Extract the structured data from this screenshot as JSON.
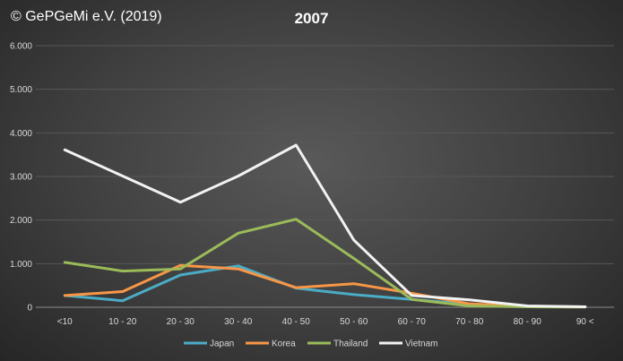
{
  "copyright": "© GePGeMi e.V. (2019)",
  "chart_data": {
    "type": "line",
    "title": "2007",
    "categories": [
      "<10",
      "10 - 20",
      "20 - 30",
      "30 - 40",
      "40 - 50",
      "50 - 60",
      "60 - 70",
      "70 - 80",
      "80 - 90",
      "90 <"
    ],
    "y_tick_labels": [
      "0",
      "1.000",
      "2.000",
      "3.000",
      "4.000",
      "5.000",
      "6.000"
    ],
    "ylim": [
      0,
      6000
    ],
    "grid": true,
    "legend_position": "bottom",
    "series": [
      {
        "name": "Japan",
        "color": "#4bacc6",
        "values": [
          270,
          150,
          740,
          950,
          440,
          290,
          180,
          70,
          20,
          10
        ]
      },
      {
        "name": "Korea",
        "color": "#f79646",
        "values": [
          270,
          360,
          960,
          880,
          450,
          540,
          320,
          80,
          20,
          10
        ]
      },
      {
        "name": "Thailand",
        "color": "#9bbb59",
        "values": [
          1030,
          830,
          880,
          1700,
          2020,
          1120,
          180,
          30,
          10,
          5
        ]
      },
      {
        "name": "Vietnam",
        "color": "#f2f2f2",
        "values": [
          3610,
          3010,
          2410,
          3010,
          3720,
          1540,
          270,
          170,
          30,
          10
        ]
      }
    ]
  }
}
